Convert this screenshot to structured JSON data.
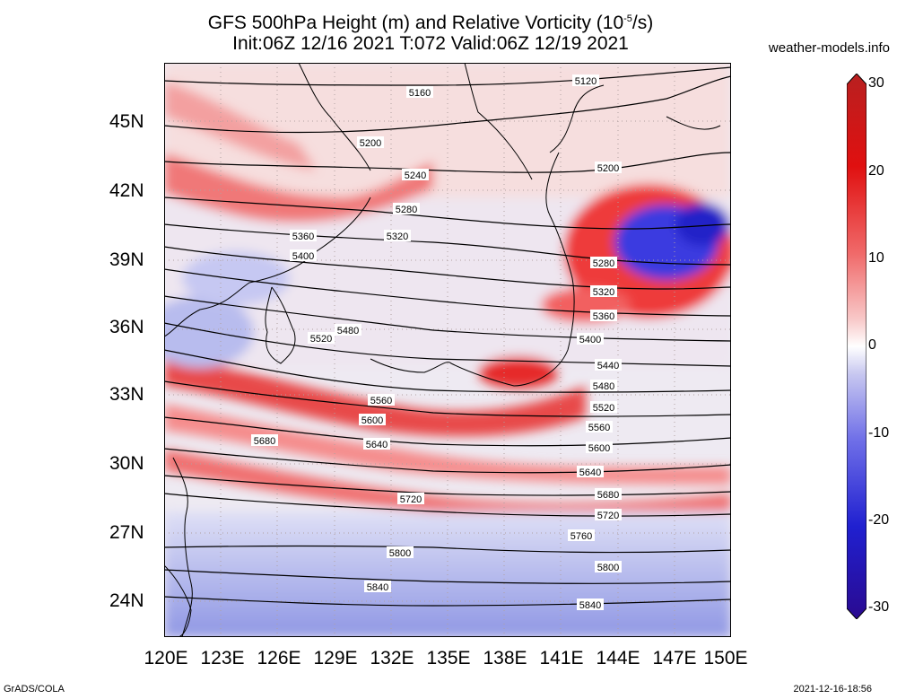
{
  "title": {
    "line1": "GFS 500hPa Height (m) and Relative Vorticity (10",
    "line1_exp": "-5",
    "line1_end": "/s)",
    "line2": "Init:06Z 12/16 2021 T:072 Valid:06Z 12/19 2021"
  },
  "site": "weather-models.info",
  "lat_labels": [
    "45N",
    "42N",
    "39N",
    "36N",
    "33N",
    "30N",
    "27N",
    "24N"
  ],
  "lon_labels": [
    "120E",
    "123E",
    "126E",
    "129E",
    "132E",
    "135E",
    "138E",
    "141E",
    "144E",
    "147E",
    "150E"
  ],
  "colorbar": {
    "labels": [
      "30",
      "20",
      "10",
      "0",
      "-10",
      "-20",
      "-30"
    ],
    "colors": [
      "#b82020",
      "#e01010",
      "#f06a6a",
      "#f8c8c8",
      "#ffffff",
      "#c8c8f0",
      "#7070e8",
      "#2020d0",
      "#2a0a90"
    ]
  },
  "contours": [
    {
      "label": "5120"
    },
    {
      "label": "5160"
    },
    {
      "label": "5200"
    },
    {
      "label": "5200"
    },
    {
      "label": "5240"
    },
    {
      "label": "5280"
    },
    {
      "label": "5280"
    },
    {
      "label": "5320"
    },
    {
      "label": "5320"
    },
    {
      "label": "5360"
    },
    {
      "label": "5360"
    },
    {
      "label": "5400"
    },
    {
      "label": "5400"
    },
    {
      "label": "5440"
    },
    {
      "label": "5480"
    },
    {
      "label": "5480"
    },
    {
      "label": "5520"
    },
    {
      "label": "5520"
    },
    {
      "label": "5560"
    },
    {
      "label": "5560"
    },
    {
      "label": "5600"
    },
    {
      "label": "5600"
    },
    {
      "label": "5640"
    },
    {
      "label": "5640"
    },
    {
      "label": "5680"
    },
    {
      "label": "5680"
    },
    {
      "label": "5720"
    },
    {
      "label": "5720"
    },
    {
      "label": "5760"
    },
    {
      "label": "5800"
    },
    {
      "label": "5800"
    },
    {
      "label": "5840"
    },
    {
      "label": "5840"
    }
  ],
  "footer": {
    "left": "GrADS/COLA",
    "right": "2021-12-16-18:56"
  }
}
